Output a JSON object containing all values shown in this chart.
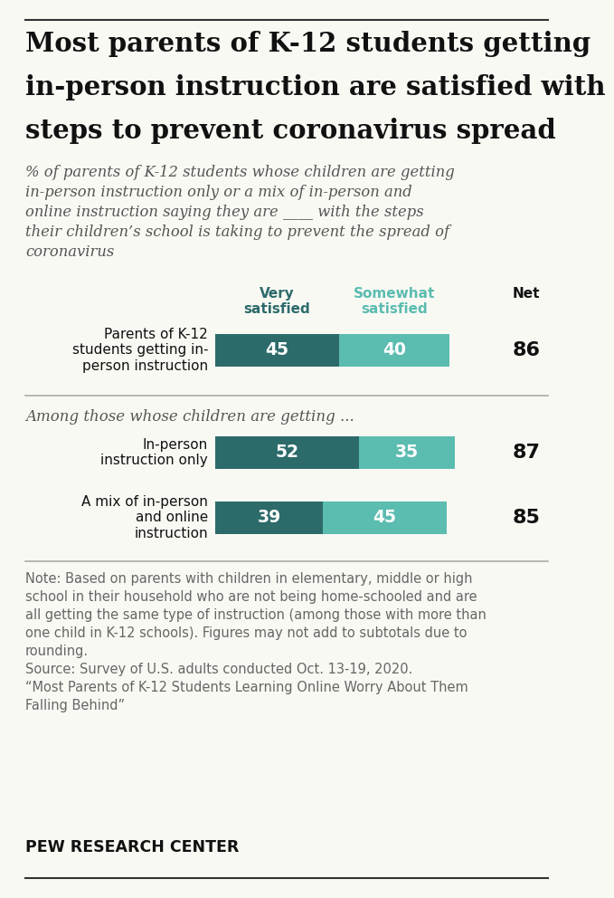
{
  "title_lines": [
    "Most parents of K-12 students getting",
    "in-person instruction are satisfied with",
    "steps to prevent coronavirus spread"
  ],
  "subtitle_lines": [
    "% of parents of K-12 students whose children are getting",
    "in-person instruction only or a mix of in-person and",
    "online instruction saying they are ____ with the steps",
    "their children’s school is taking to prevent the spread of",
    "coronavirus"
  ],
  "col_header_very": "Very\nsatisfied",
  "col_header_somewhat": "Somewhat\nsatisfied",
  "col_header_net": "Net",
  "section2_header": "Among those whose children are getting ...",
  "bar_labels": [
    "Parents of K-12\nstudents getting in-\nperson instruction",
    "In-person\ninstruction only",
    "A mix of in-person\nand online\ninstruction"
  ],
  "very_values": [
    45,
    52,
    39
  ],
  "somewhat_values": [
    40,
    35,
    45
  ],
  "net_values": [
    86,
    87,
    85
  ],
  "color_very": "#2d6b6b",
  "color_somewhat": "#5bbcb0",
  "note_lines": [
    "Note: Based on parents with children in elementary, middle or high",
    "school in their household who are not being home-schooled and are",
    "all getting the same type of instruction (among those with more than",
    "one child in K-12 schools). Figures may not add to subtotals due to",
    "rounding.",
    "Source: Survey of U.S. adults conducted Oct. 13-19, 2020.",
    "“Most Parents of K-12 Students Learning Online Worry About Them",
    "Falling Behind”"
  ],
  "footer": "PEW RESEARCH CENTER",
  "background_color": "#f9f9f4",
  "top_border_color": "#333333",
  "bottom_border_color": "#333333",
  "sep_color": "#aaaaaa"
}
